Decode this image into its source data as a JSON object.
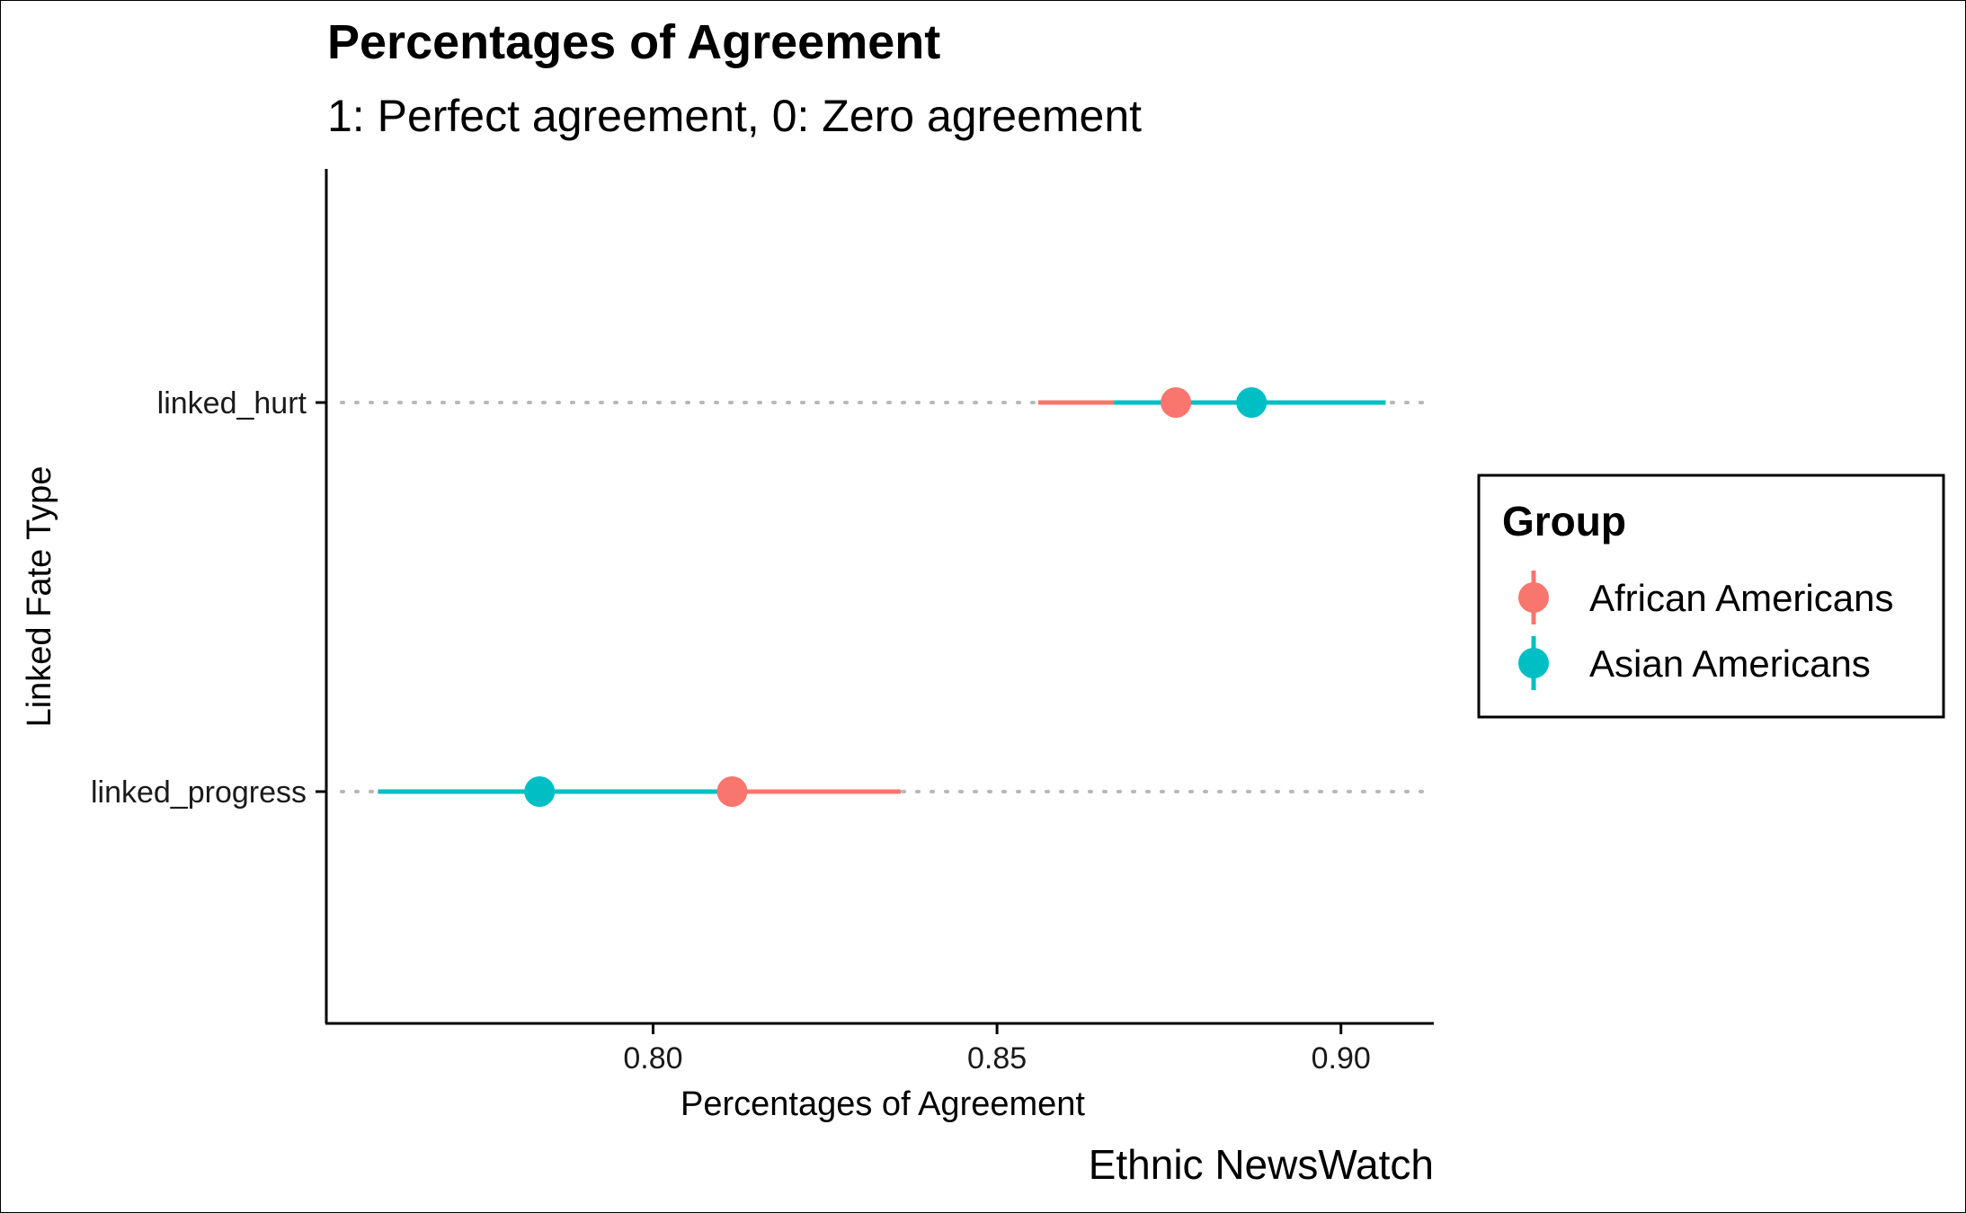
{
  "chart_data": {
    "type": "scatter",
    "title": "Percentages of Agreement",
    "subtitle": "1: Perfect agreement, 0: Zero agreement",
    "xlabel": "Percentages of Agreement",
    "ylabel": "Linked Fate Type",
    "caption": "Ethnic NewsWatch",
    "xlim": [
      0.7525,
      0.9135
    ],
    "x_ticks": [
      0.8,
      0.85,
      0.9
    ],
    "x_tick_labels": [
      "0.80",
      "0.85",
      "0.90"
    ],
    "categories": [
      "linked_hurt",
      "linked_progress"
    ],
    "grid": "dotted horizontal guide per category",
    "legend": {
      "title": "Group",
      "placement": "right"
    },
    "series": [
      {
        "name": "African Americans",
        "color": "#F8766D",
        "points": [
          {
            "category": "linked_hurt",
            "value": 0.876,
            "low": 0.856,
            "high": 0.867
          },
          {
            "category": "linked_progress",
            "value": 0.8115,
            "low": 0.8115,
            "high": 0.836
          }
        ]
      },
      {
        "name": "Asian Americans",
        "color": "#00BFC4",
        "points": [
          {
            "category": "linked_hurt",
            "value": 0.887,
            "low": 0.867,
            "high": 0.9065
          },
          {
            "category": "linked_progress",
            "value": 0.7835,
            "low": 0.76,
            "high": 0.8115
          }
        ]
      }
    ]
  }
}
